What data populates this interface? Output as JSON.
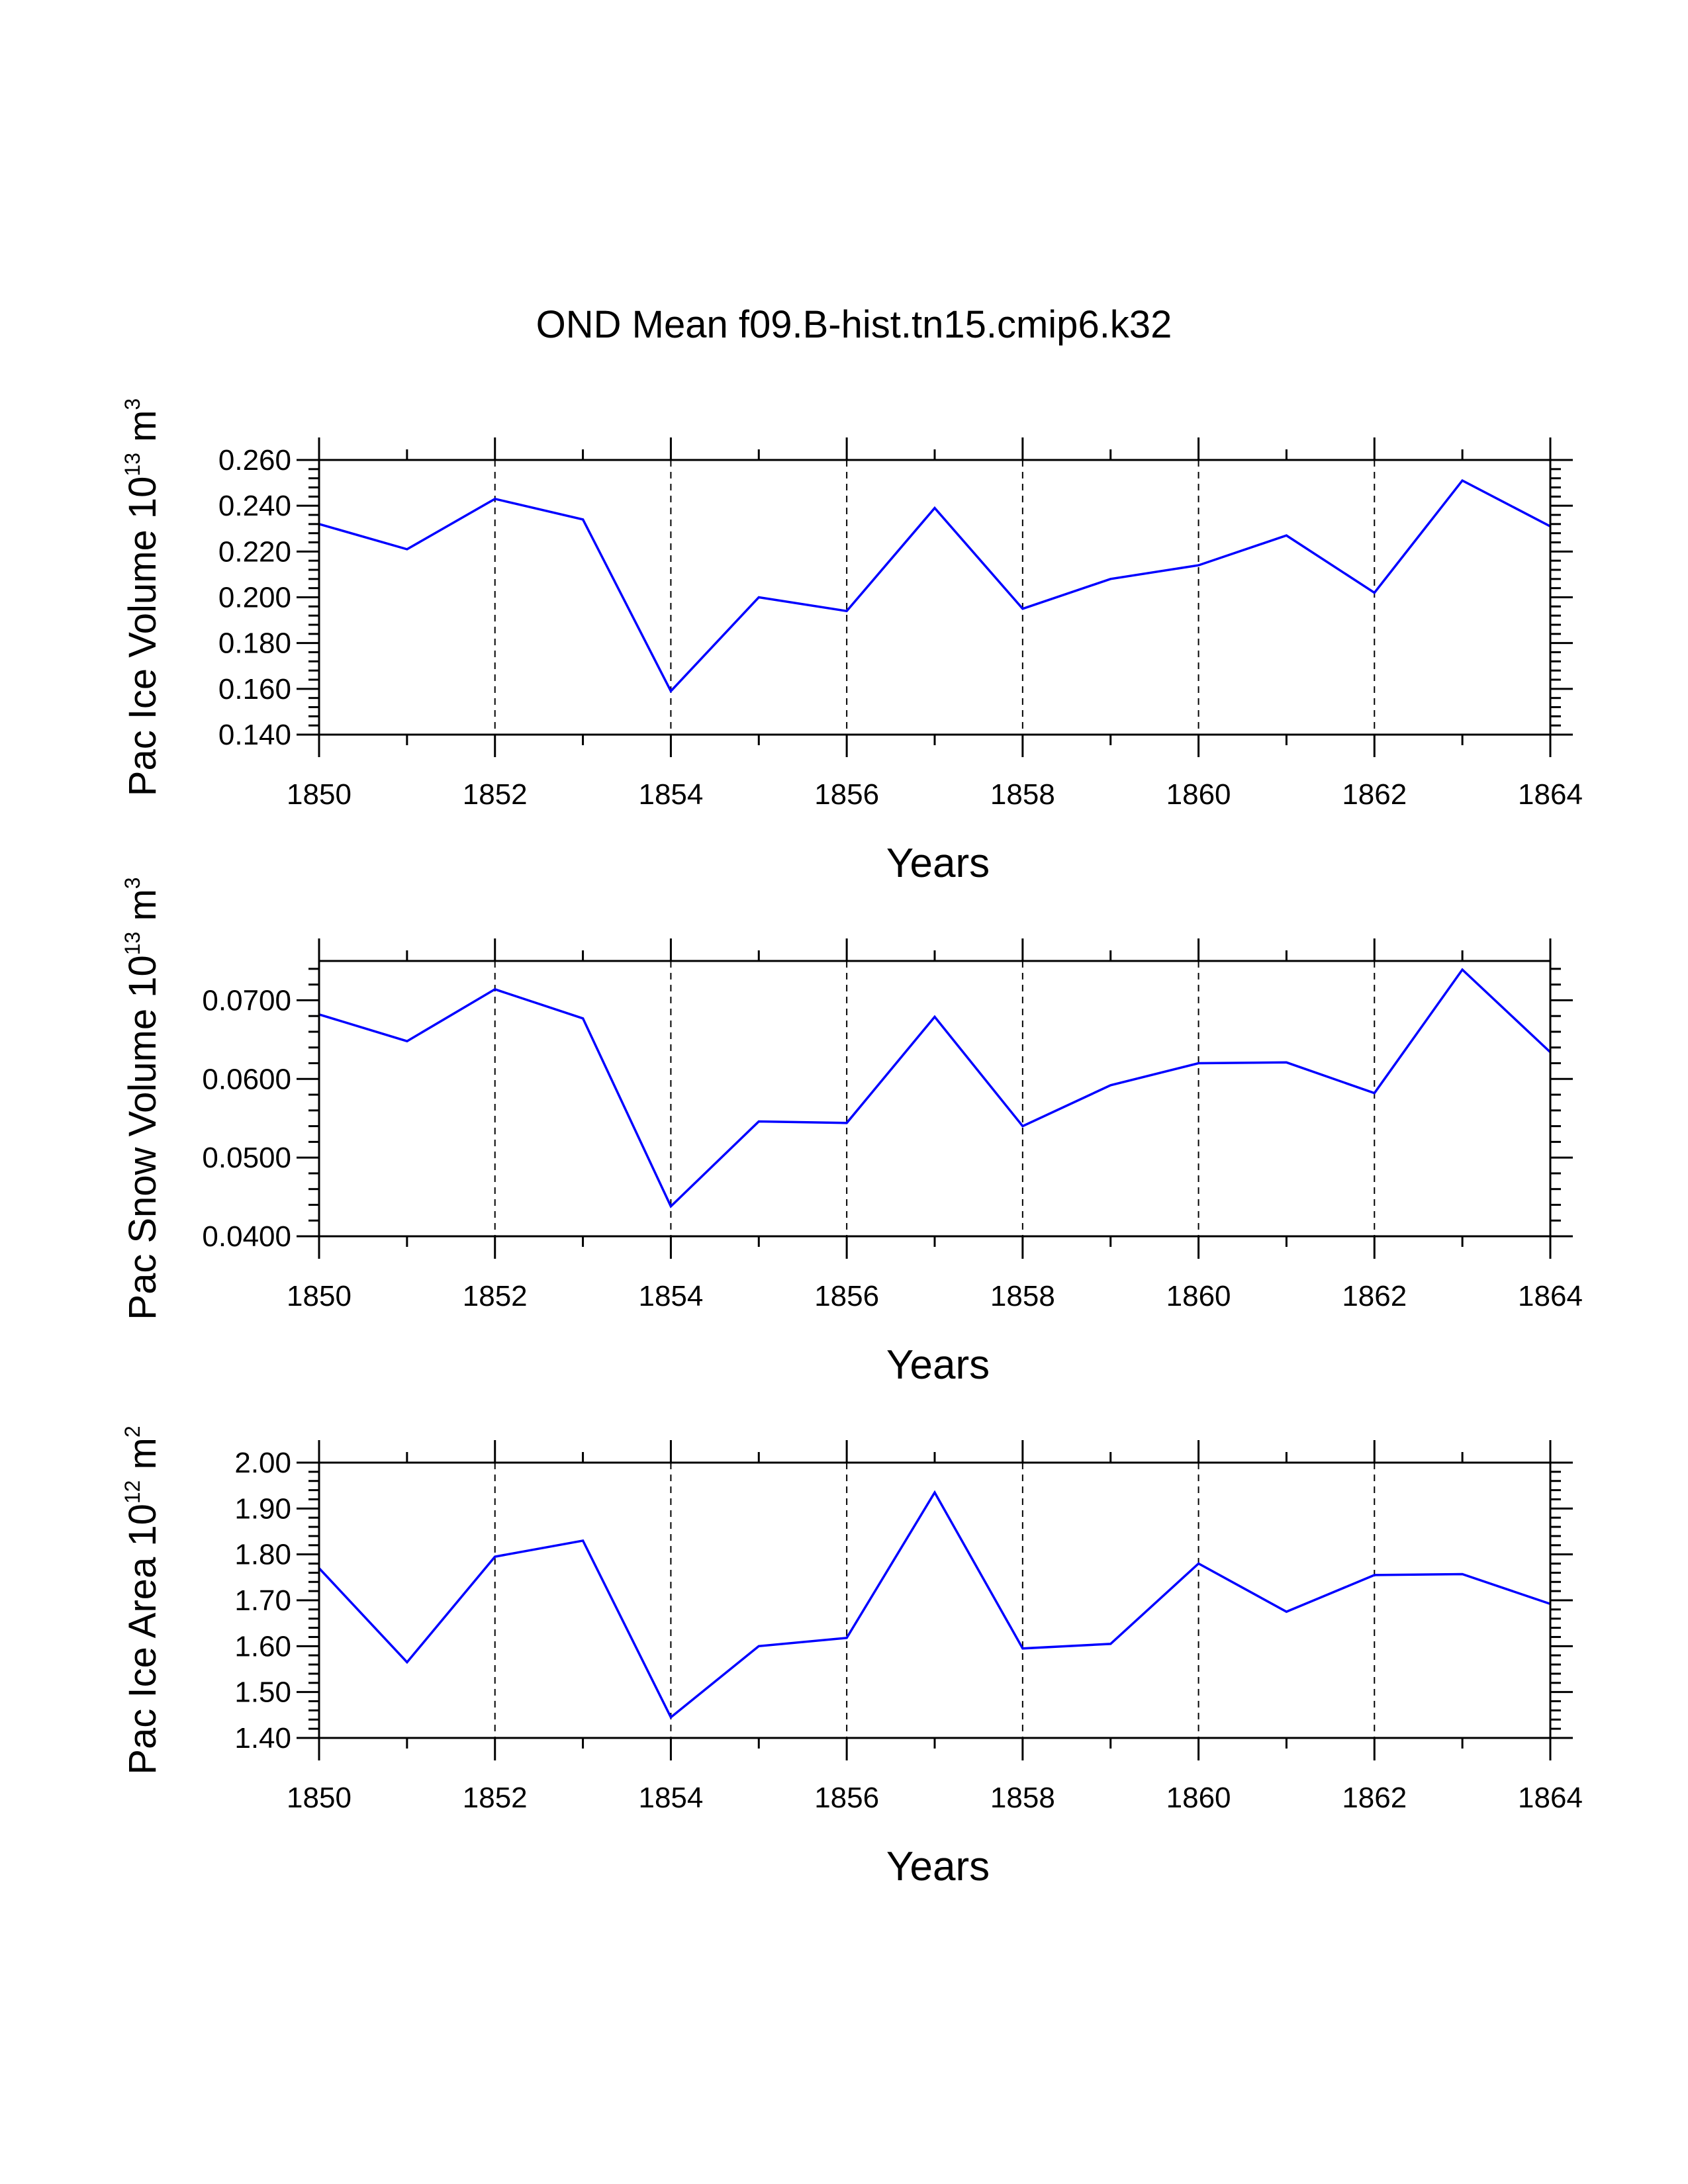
{
  "figure_title": "OND Mean f09.B-hist.tn15.cmip6.k32",
  "colors": {
    "series": "#0000ff",
    "axis": "#000000",
    "grid": "#000000"
  },
  "chart_data": [
    {
      "type": "line",
      "title": "OND Mean f09.B-hist.tn15.cmip6.k32",
      "ylabel": {
        "text": "Pac Ice Volume 10",
        "exp": "13",
        "unit": "m",
        "unit_exp": "3"
      },
      "xlabel": "Years",
      "x": [
        1850,
        1851,
        1852,
        1853,
        1854,
        1855,
        1856,
        1857,
        1858,
        1859,
        1860,
        1861,
        1862,
        1863,
        1864
      ],
      "series": [
        {
          "name": "Pac Ice Volume",
          "values": [
            0.232,
            0.221,
            0.243,
            0.234,
            0.159,
            0.2,
            0.194,
            0.239,
            0.195,
            0.208,
            0.214,
            0.227,
            0.202,
            0.251,
            0.231
          ]
        }
      ],
      "xlim": [
        1850,
        1864
      ],
      "ylim": [
        0.14,
        0.26
      ],
      "xticks": [
        "1850",
        "1852",
        "1854",
        "1856",
        "1858",
        "1860",
        "1862",
        "1864"
      ],
      "yticks": [
        "0.140",
        "0.160",
        "0.180",
        "0.200",
        "0.220",
        "0.240",
        "0.260"
      ],
      "grid": "vertical dashed"
    },
    {
      "type": "line",
      "ylabel": {
        "text": "Pac Snow Volume 10",
        "exp": "13",
        "unit": "m",
        "unit_exp": "3"
      },
      "xlabel": "Years",
      "x": [
        1850,
        1851,
        1852,
        1853,
        1854,
        1855,
        1856,
        1857,
        1858,
        1859,
        1860,
        1861,
        1862,
        1863,
        1864
      ],
      "series": [
        {
          "name": "Pac Snow Volume",
          "values": [
            0.0682,
            0.0648,
            0.0714,
            0.0677,
            0.0438,
            0.0546,
            0.0544,
            0.0679,
            0.054,
            0.0592,
            0.062,
            0.0621,
            0.0582,
            0.0739,
            0.0634
          ]
        }
      ],
      "xlim": [
        1850,
        1864
      ],
      "ylim": [
        0.04,
        0.075
      ],
      "xticks": [
        "1850",
        "1852",
        "1854",
        "1856",
        "1858",
        "1860",
        "1862",
        "1864"
      ],
      "yticks": [
        "0.0400",
        "0.0500",
        "0.0600",
        "0.0700"
      ],
      "grid": "vertical dashed"
    },
    {
      "type": "line",
      "ylabel": {
        "text": "Pac Ice Area 10",
        "exp": "12",
        "unit": "m",
        "unit_exp": "2"
      },
      "xlabel": "Years",
      "x": [
        1850,
        1851,
        1852,
        1853,
        1854,
        1855,
        1856,
        1857,
        1858,
        1859,
        1860,
        1861,
        1862,
        1863,
        1864
      ],
      "series": [
        {
          "name": "Pac Ice Area",
          "values": [
            1.77,
            1.565,
            1.795,
            1.83,
            1.445,
            1.6,
            1.618,
            1.935,
            1.595,
            1.605,
            1.78,
            1.675,
            1.755,
            1.757,
            1.692
          ]
        }
      ],
      "xlim": [
        1850,
        1864
      ],
      "ylim": [
        1.4,
        2.0
      ],
      "xticks": [
        "1850",
        "1852",
        "1854",
        "1856",
        "1858",
        "1860",
        "1862",
        "1864"
      ],
      "yticks": [
        "1.40",
        "1.50",
        "1.60",
        "1.70",
        "1.80",
        "1.90",
        "2.00"
      ],
      "grid": "vertical dashed"
    }
  ]
}
